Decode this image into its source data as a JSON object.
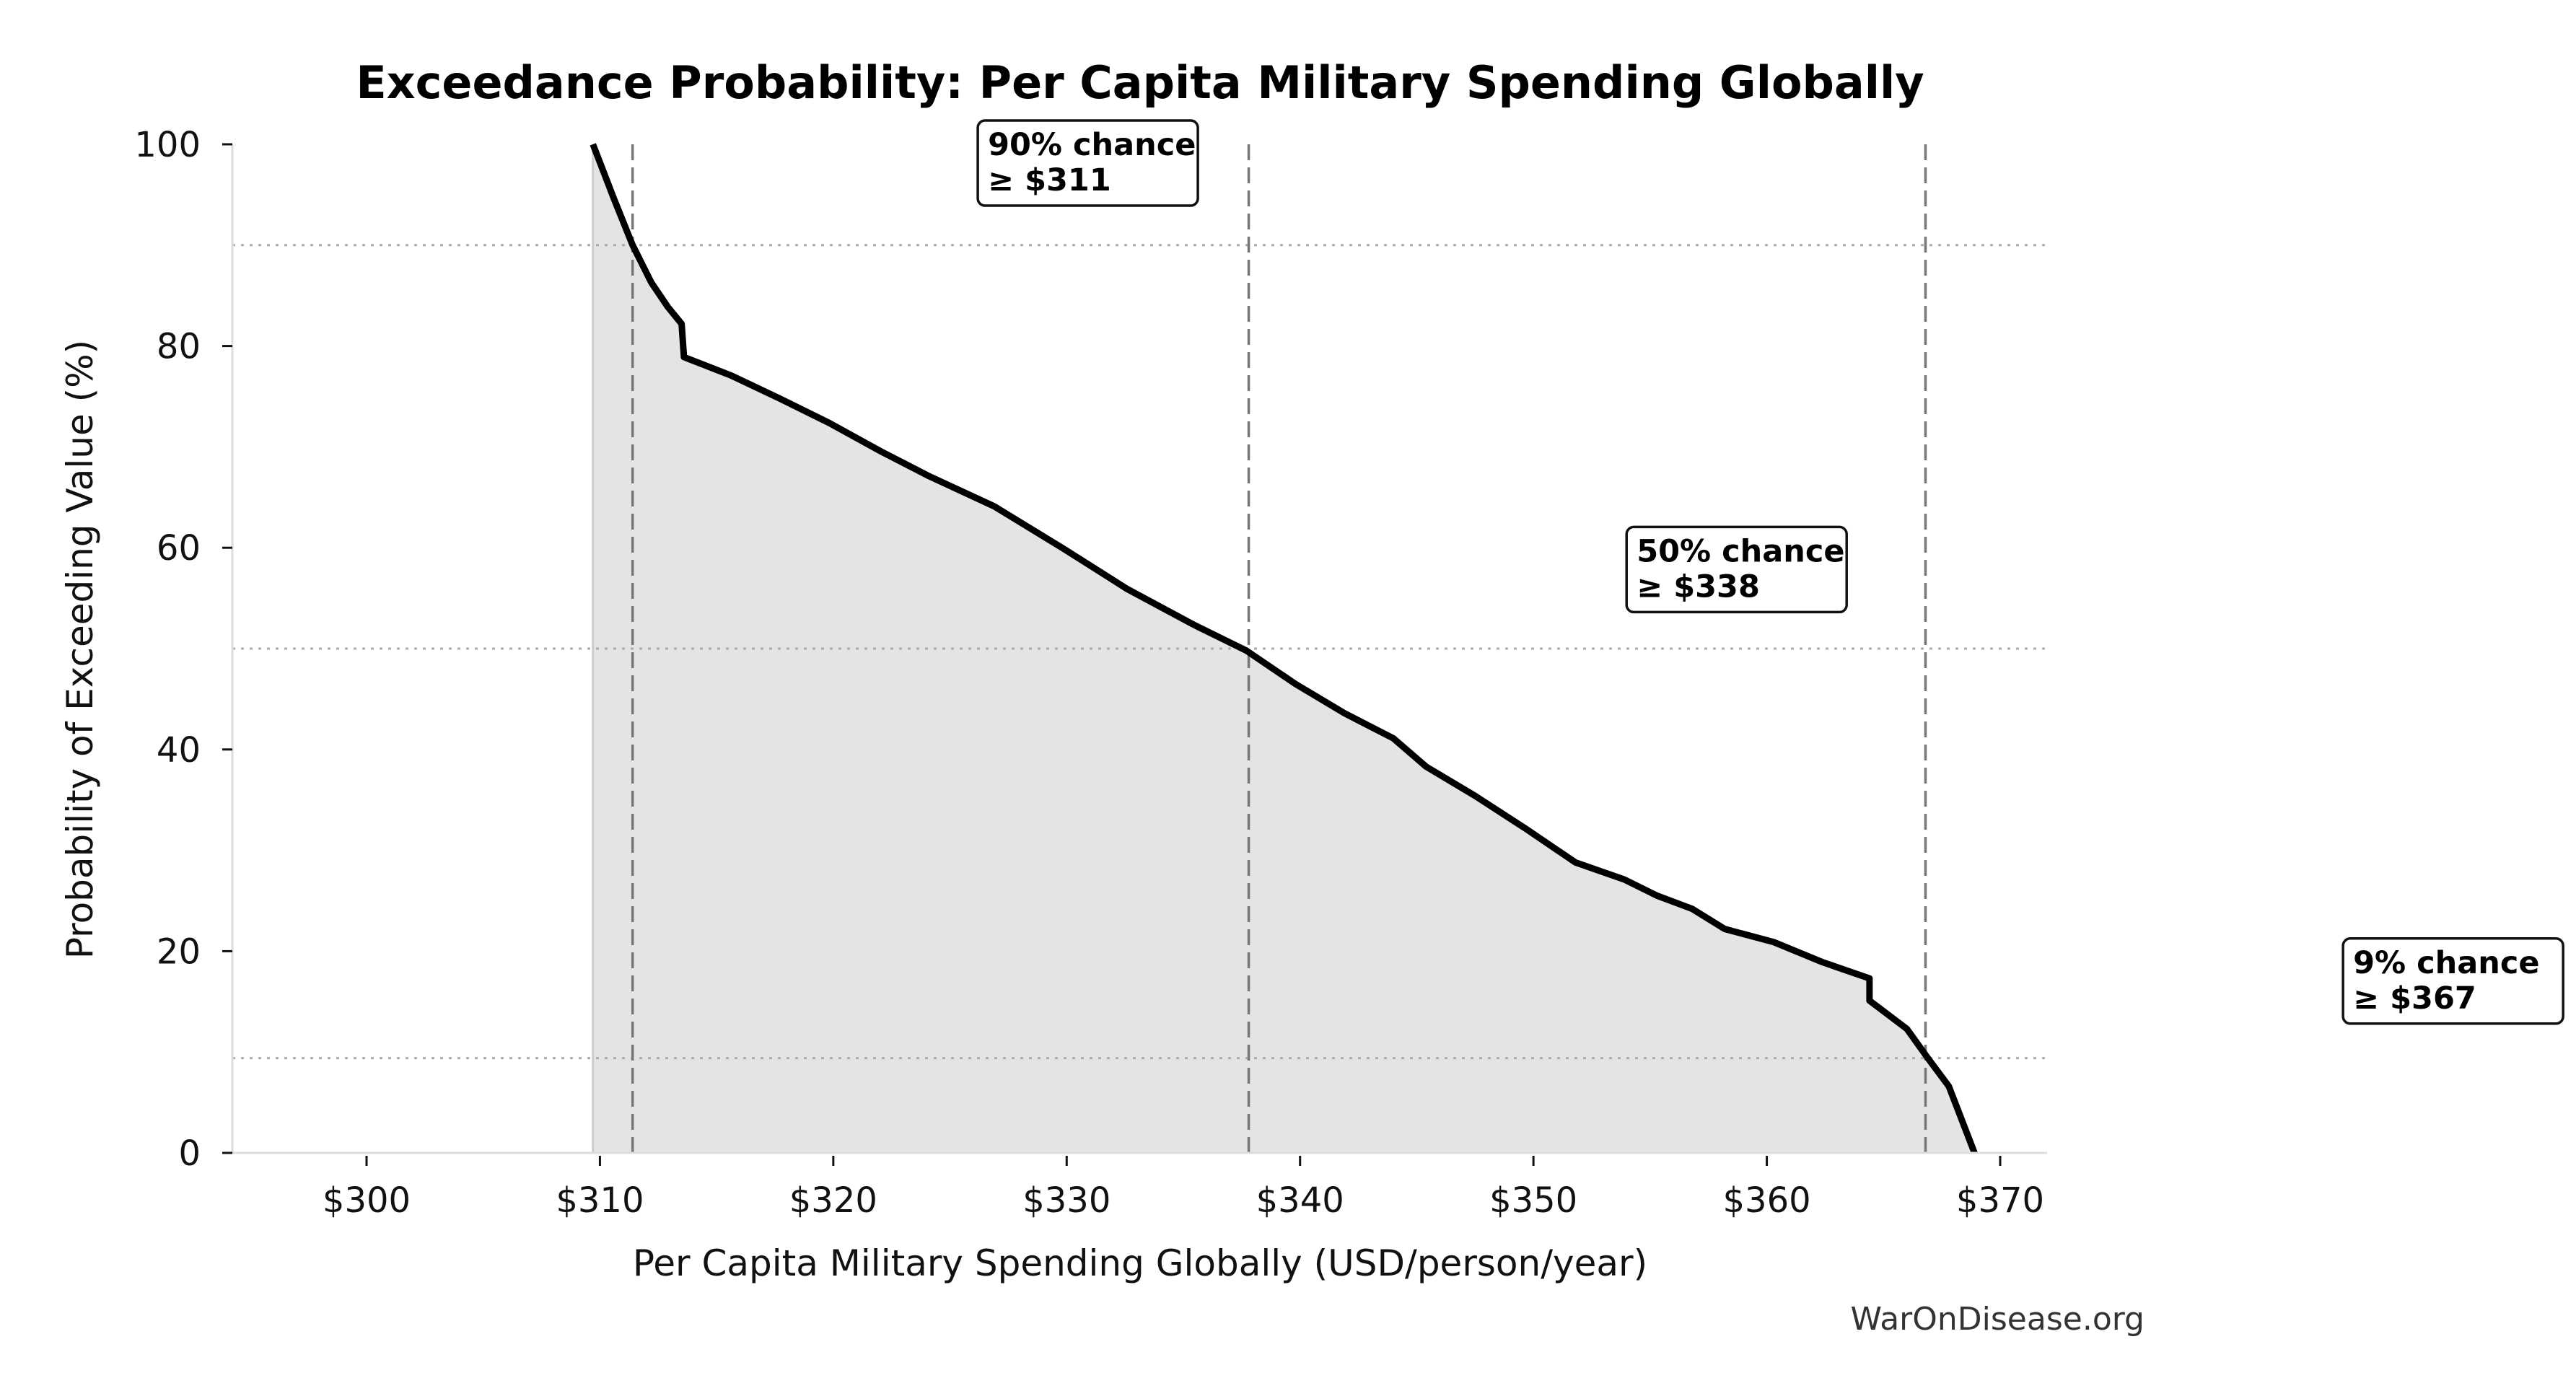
{
  "chart_data": {
    "type": "area",
    "title": "Exceedance Probability: Per Capita Military Spending Globally",
    "xlabel": "Per Capita Military Spending Globally (USD/person/year)",
    "ylabel": "Probability of Exceeding Value (%)",
    "xlim": [
      294.2,
      372
    ],
    "ylim": [
      0,
      100
    ],
    "x_ticks": [
      300,
      310,
      320,
      330,
      340,
      350,
      360,
      370
    ],
    "x_tick_labels": [
      "$300",
      "$310",
      "$320",
      "$330",
      "$340",
      "$350",
      "$360",
      "$370"
    ],
    "y_ticks": [
      0,
      20,
      40,
      60,
      80,
      100
    ],
    "y_tick_labels": [
      "0",
      "20",
      "40",
      "60",
      "80",
      "100"
    ],
    "grid": false,
    "series": [
      {
        "name": "exceedance",
        "x": [
          309.7,
          310.6,
          311.4,
          312.2,
          312.9,
          313.5,
          313.6,
          315.6,
          317.7,
          319.8,
          322.0,
          324.1,
          326.9,
          329.8,
          332.6,
          335.5,
          337.7,
          339.8,
          341.9,
          344.0,
          345.4,
          347.5,
          349.7,
          351.8,
          353.9,
          355.3,
          356.8,
          358.2,
          360.3,
          362.4,
          364.4,
          364.4,
          366.0,
          366.9,
          367.8,
          368.9
        ],
        "y": [
          100,
          94.6,
          90.0,
          86.3,
          83.9,
          82.2,
          78.9,
          77.1,
          74.8,
          72.4,
          69.6,
          67.1,
          64.1,
          60.0,
          55.9,
          52.3,
          49.8,
          46.5,
          43.6,
          41.1,
          38.3,
          35.4,
          32.1,
          28.8,
          27.1,
          25.5,
          24.2,
          22.2,
          20.9,
          18.9,
          17.3,
          15.1,
          12.3,
          9.4,
          6.6,
          0
        ]
      }
    ],
    "reference_lines": [
      {
        "probability": 90,
        "value": 311.4
      },
      {
        "probability": 50,
        "value": 337.8
      },
      {
        "probability": 9.4,
        "value": 366.8
      }
    ],
    "annotations": [
      {
        "line1": "90% chance",
        "line2": "≥ $311",
        "x": 326.5,
        "y": 101.5
      },
      {
        "line1": "50% chance",
        "line2": "≥ $338",
        "x": 354.3,
        "y": 61.2
      },
      {
        "line1": "9% chance",
        "line2": "≥ $367",
        "x": 385.0,
        "y": 20.4
      }
    ],
    "watermark": "WarOnDisease.org",
    "colors": {
      "line": "#000000",
      "fill": "#e4e4e4",
      "ref_line": "#777777",
      "hgrid": "#aaaaaa",
      "spine": "#dddddd"
    }
  }
}
